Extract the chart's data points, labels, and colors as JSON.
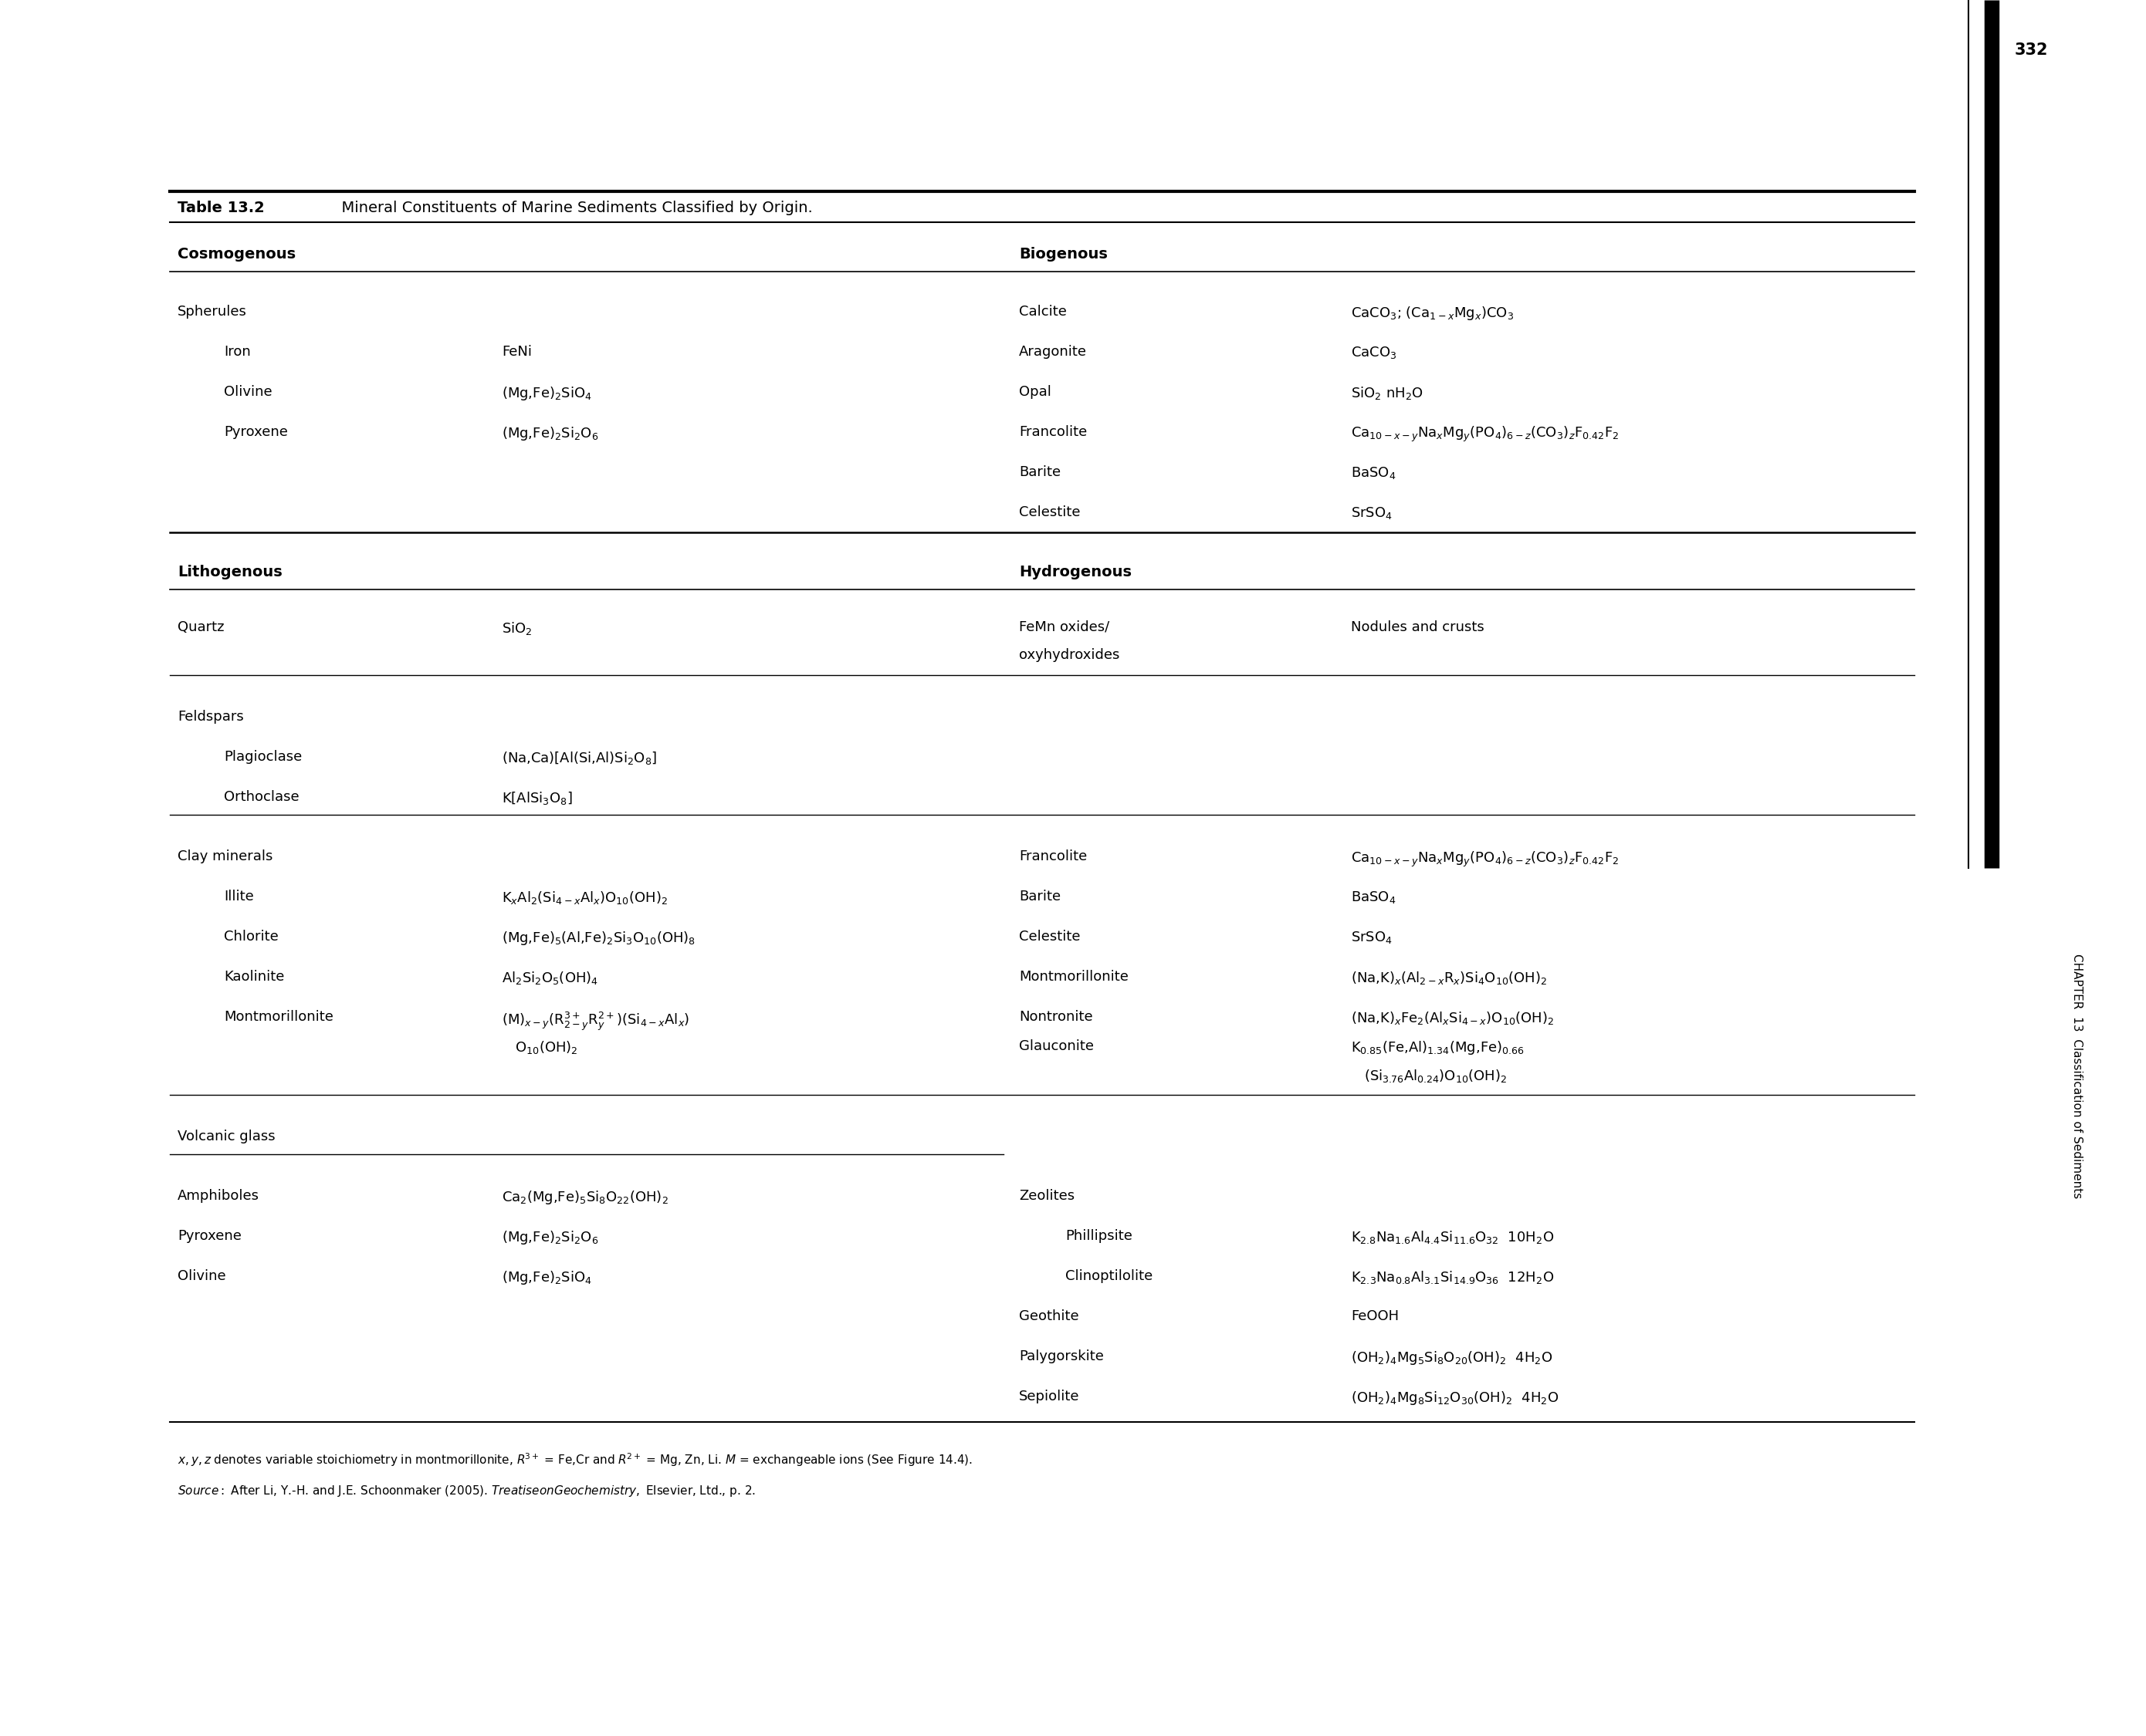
{
  "title_bold": "Table 13.2",
  "title_rest": "  Mineral Constituents of Marine Sediments Classified by Origin.",
  "background_color": "#ffffff",
  "fig_width": 27.8,
  "fig_height": 22.5,
  "footnote1": "x, y, z denotes variable stoichiometry in montmorillonite, R$^{3+}$ = Fe,Cr and R$^{2+}$ = Mg, Zn, Li. M = exchangeable ions (See Figure 14.4).",
  "footnote2": "Source: After Li, Y.-H. and J.E. Schoonmaker (2005). Treatise on Geochemistry, Elsevier, Ltd., p. 2.",
  "sidebar_num": "332",
  "sidebar_chapter": "CHAPTER  13  Classification of Sediments"
}
